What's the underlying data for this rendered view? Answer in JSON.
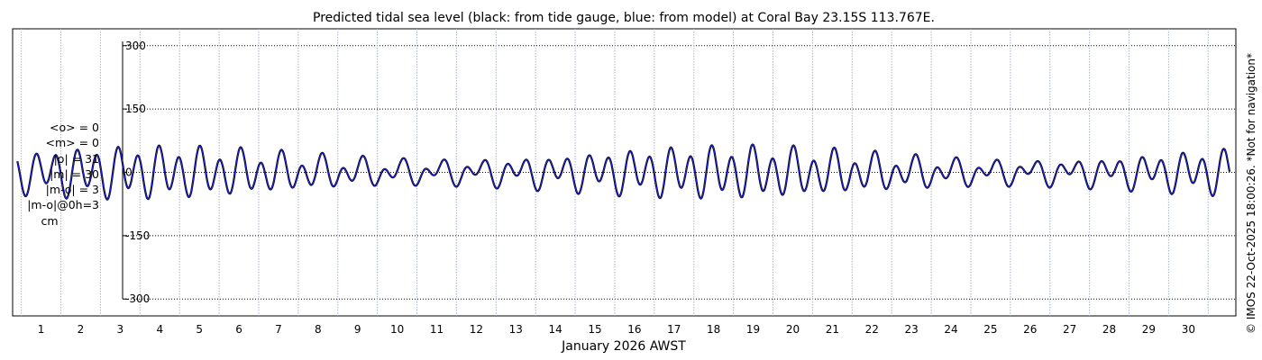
{
  "chart_data": {
    "type": "line",
    "title": "Predicted tidal sea level (black: from tide gauge, blue: from model) at Coral Bay 23.15S 113.767E.",
    "xlabel": "January 2026 AWST",
    "ylabel": "",
    "x_tick_labels": [
      "1",
      "2",
      "3",
      "4",
      "5",
      "6",
      "7",
      "8",
      "9",
      "10",
      "11",
      "12",
      "13",
      "14",
      "15",
      "16",
      "17",
      "18",
      "19",
      "20",
      "21",
      "22",
      "23",
      "24",
      "25",
      "26",
      "27",
      "28",
      "29",
      "30"
    ],
    "y_ticks": [
      300,
      150,
      0,
      -150,
      -300
    ],
    "y_tick_labels": [
      "300",
      "150",
      "0",
      "-150",
      "-300"
    ],
    "xlim": [
      0.28,
      31.2
    ],
    "ylim": [
      -340,
      340
    ],
    "grid": true,
    "series": [
      {
        "name": "from tide gauge",
        "color": "#000000",
        "harmonics": {
          "m2_base": 35,
          "m2_mod": 16,
          "k1_amp": 17,
          "spring_period_days": 14.77,
          "spring_phase_day": 3.6,
          "m2_period_days": 0.5175,
          "k1_period_days": 0.9973
        }
      },
      {
        "name": "from model",
        "color": "#1f1fcc",
        "harmonics": {
          "m2_base": 35,
          "m2_mod": 16,
          "k1_amp": 17,
          "spring_period_days": 14.77,
          "spring_phase_day": 3.6,
          "m2_period_days": 0.5175,
          "k1_period_days": 0.9973
        }
      }
    ]
  },
  "stats": {
    "mean_obs": "<o> = 0",
    "mean_model": "<m> = 0",
    "abs_obs": "|o| = 31",
    "abs_model": "|m| = 30",
    "abs_diff": "|m-o| = 3",
    "abs_diff_0h": "|m-o|@0h=3",
    "unit": "cm"
  },
  "credit": "© IMOS 22-Oct-2025 18:00:26. *Not for navigation*"
}
